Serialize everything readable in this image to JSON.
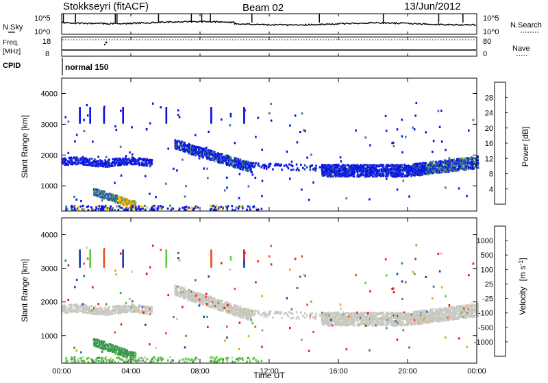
{
  "header": {
    "station": "Stokkseyri (fitACF)",
    "beam": "Beam 02",
    "date": "13/Jun/2012"
  },
  "noise_panel": {
    "left_label": "N.Sky",
    "left_ticks": [
      "10^5",
      "10^0"
    ],
    "right_ticks": [
      "10^5",
      "10^0"
    ],
    "right_label": "N.Search"
  },
  "freq_panel": {
    "left_label_line1": "Freq.",
    "left_label_line2": "[MHz]",
    "left_ticks": [
      "18",
      "8"
    ],
    "right_ticks": [
      "80",
      "0"
    ],
    "right_label": "Nave"
  },
  "cpid_panel": {
    "label": "CPID",
    "mode": "normal 150"
  },
  "chart_data": [
    {
      "type": "heatmap",
      "name_label": "Power [dB]",
      "xlabel": "",
      "ylabel": "Slant Range [km]",
      "x_range_hours": [
        0,
        24
      ],
      "ylim": [
        180,
        4500
      ],
      "yticks": [
        "1000",
        "2000",
        "3000",
        "4000"
      ],
      "colorbar": {
        "label": "Power [dB]",
        "ticks": [
          "4",
          "8",
          "12",
          "16",
          "20",
          "24",
          "28"
        ],
        "colors": [
          "#0a14e6",
          "#2846b4",
          "#3c7c82",
          "#50a050",
          "#f0c814",
          "#f08c14",
          "#e65014",
          "#dc1414"
        ]
      }
    },
    {
      "type": "heatmap",
      "name_label": "Velocity",
      "xlabel": "Time UT",
      "ylabel": "Slant Range [km]",
      "x_range_hours": [
        0,
        24
      ],
      "ylim": [
        180,
        4500
      ],
      "xticks": [
        "00:00",
        "04:00",
        "08:00",
        "12:00",
        "16:00",
        "20:00",
        "00:00"
      ],
      "yticks": [
        "1000",
        "2000",
        "3000",
        "4000"
      ],
      "colorbar": {
        "label": "Velocity",
        "unit_label": "[m s",
        "unit_exp": "-1",
        "unit_close": "]",
        "ticks": [
          "1000",
          "500",
          "100",
          "25",
          "-25",
          "-100",
          "-500",
          "-1000"
        ],
        "colors": [
          "#1e3cb4",
          "#2878a0",
          "#3c9650",
          "#5ac83c",
          "#c8c8c0",
          "#f0a014",
          "#f05014",
          "#e61e1e",
          "#e61414"
        ]
      }
    }
  ]
}
